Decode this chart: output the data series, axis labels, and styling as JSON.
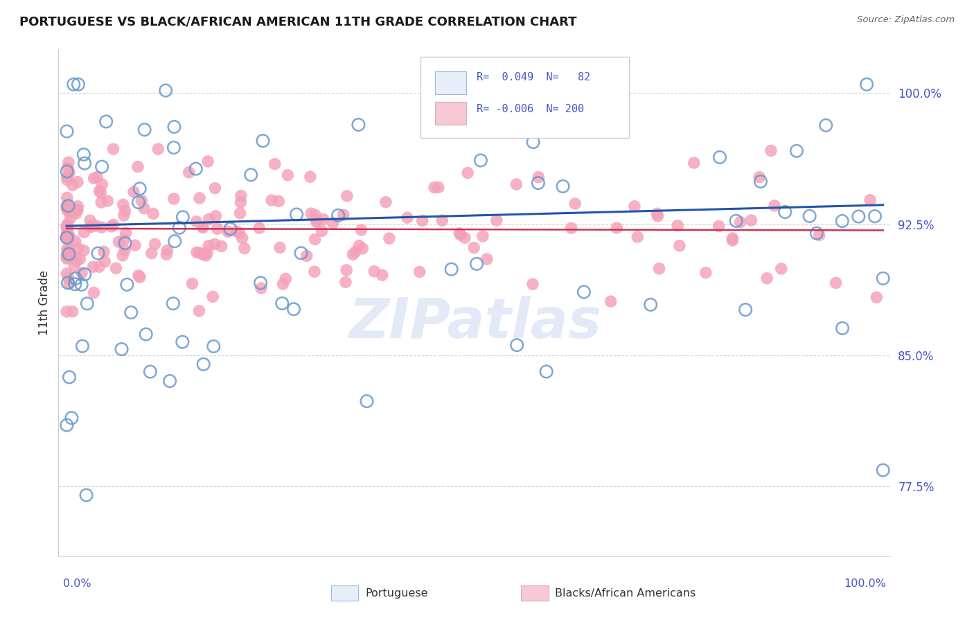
{
  "title": "PORTUGUESE VS BLACK/AFRICAN AMERICAN 11TH GRADE CORRELATION CHART",
  "source": "Source: ZipAtlas.com",
  "ylabel": "11th Grade",
  "ytick_vals": [
    0.775,
    0.85,
    0.925,
    1.0
  ],
  "ytick_labels": [
    "77.5%",
    "85.0%",
    "92.5%",
    "100.0%"
  ],
  "xlim": [
    -0.01,
    1.01
  ],
  "ylim": [
    0.735,
    1.025
  ],
  "color_blue_face": "none",
  "color_blue_edge": "#6699cc",
  "color_pink_face": "#f4a0b8",
  "color_line_blue": "#2255aa",
  "color_line_red": "#cc3355",
  "color_labels": "#4455cc",
  "color_grid": "#bbbbbb",
  "legend_box_color": "#e8eef8",
  "blue_trend_y0": 0.924,
  "blue_trend_y1": 0.936,
  "red_trend_y0": 0.9225,
  "red_trend_y1": 0.9215,
  "watermark_color": "#c8d4ee",
  "watermark_alpha": 0.5
}
